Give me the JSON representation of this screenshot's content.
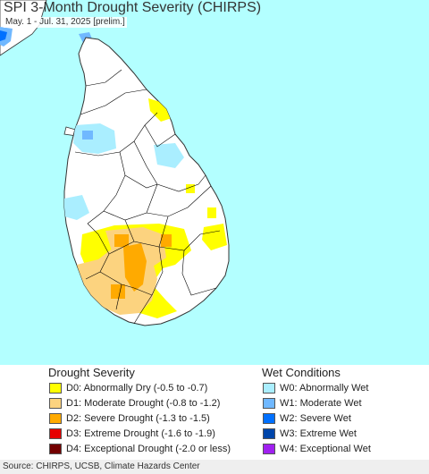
{
  "title": "SPI 3-Month Drought Severity (CHIRPS)",
  "subtitle": "May. 1 - Jul. 31, 2025 [prelim.]",
  "colors": {
    "ocean": "#b3ffff",
    "land": "#ffffff",
    "india_land": "#ffffff",
    "boundary": "#000000",
    "border": "#333333"
  },
  "legend": {
    "drought": {
      "title": "Drought Severity",
      "items": [
        {
          "code": "D0",
          "label": "D0: Abnormally Dry (-0.5 to -0.7)",
          "color": "#ffff00"
        },
        {
          "code": "D1",
          "label": "D1: Moderate Drought (-0.8 to -1.2)",
          "color": "#fcd37f"
        },
        {
          "code": "D2",
          "label": "D2: Severe Drought (-1.3 to -1.5)",
          "color": "#ffaa00"
        },
        {
          "code": "D3",
          "label": "D3: Extreme Drought (-1.6 to -1.9)",
          "color": "#e60000"
        },
        {
          "code": "D4",
          "label": "D4: Exceptional Drought (-2.0 or less)",
          "color": "#730000"
        }
      ]
    },
    "wet": {
      "title": "Wet Conditions",
      "items": [
        {
          "code": "W0",
          "label": "W0: Abnormally Wet",
          "color": "#aaeeff"
        },
        {
          "code": "W1",
          "label": "W1: Moderate Wet",
          "color": "#70b8ff"
        },
        {
          "code": "W2",
          "label": "W2: Severe Wet",
          "color": "#0070ff"
        },
        {
          "code": "W3",
          "label": "W3: Extreme Wet",
          "color": "#0046aa"
        },
        {
          "code": "W4",
          "label": "W4: Exceptional Wet",
          "color": "#a020f0"
        }
      ]
    }
  },
  "source": "Source: CHIRPS, UCSB, Climate Hazards Center"
}
